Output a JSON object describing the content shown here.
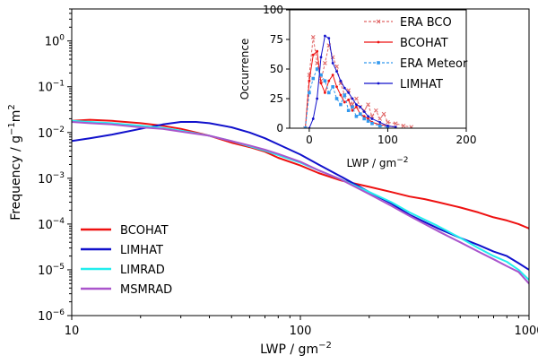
{
  "chart_data": [
    {
      "type": "line",
      "xscale": "log",
      "yscale": "log",
      "xlabel": "LWP / gm",
      "xlabel_exp": "−2",
      "ylabel": "Frequency / g",
      "ylabel_exp1": "−1",
      "ylabel_mid": "m",
      "ylabel_exp2": "2",
      "xlim": [
        10,
        1000
      ],
      "ylim": [
        1e-06,
        5
      ],
      "xticks": [
        {
          "value": 10,
          "label": "10"
        },
        {
          "value": 100,
          "label": "100"
        },
        {
          "value": 1000,
          "label": "1000"
        }
      ],
      "yticks": [
        {
          "value": 1e-06,
          "base": "10",
          "exp": "−6"
        },
        {
          "value": 1e-05,
          "base": "10",
          "exp": "−5"
        },
        {
          "value": 0.0001,
          "base": "10",
          "exp": "−4"
        },
        {
          "value": 0.001,
          "base": "10",
          "exp": "−3"
        },
        {
          "value": 0.01,
          "base": "10",
          "exp": "−2"
        },
        {
          "value": 0.1,
          "base": "10",
          "exp": "−1"
        },
        {
          "value": 1,
          "base": "10",
          "exp": "0"
        }
      ],
      "legend_position": "lower-left",
      "series": [
        {
          "name": "BCOHAT",
          "color": "#ee1111",
          "x": [
            10,
            12,
            15,
            20,
            25,
            30,
            40,
            50,
            60,
            70,
            80,
            100,
            120,
            150,
            200,
            250,
            300,
            350,
            400,
            500,
            600,
            700,
            800,
            900,
            1000
          ],
          "y": [
            0.018,
            0.019,
            0.018,
            0.016,
            0.014,
            0.012,
            0.0085,
            0.006,
            0.0048,
            0.0038,
            0.0028,
            0.0019,
            0.0013,
            0.0009,
            0.00065,
            0.0005,
            0.0004,
            0.00035,
            0.0003,
            0.00023,
            0.00018,
            0.00014,
            0.00012,
            0.0001,
            8e-05
          ]
        },
        {
          "name": "LIMHAT",
          "color": "#1111cc",
          "x": [
            10,
            12,
            15,
            20,
            25,
            30,
            35,
            40,
            50,
            60,
            70,
            80,
            100,
            120,
            150,
            200,
            250,
            300,
            400,
            500,
            600,
            700,
            800,
            900,
            1000
          ],
          "y": [
            0.0065,
            0.0075,
            0.009,
            0.012,
            0.015,
            0.017,
            0.017,
            0.016,
            0.013,
            0.01,
            0.0075,
            0.0055,
            0.0033,
            0.002,
            0.0011,
            0.0005,
            0.00028,
            0.00016,
            8e-05,
            5e-05,
            3.5e-05,
            2.5e-05,
            2e-05,
            1.4e-05,
            1e-05
          ]
        },
        {
          "name": "LIMRAD",
          "color": "#22eeee",
          "x": [
            10,
            12,
            15,
            20,
            25,
            30,
            40,
            50,
            60,
            70,
            80,
            100,
            120,
            150,
            200,
            250,
            300,
            400,
            500,
            600,
            700,
            800,
            900,
            1000
          ],
          "y": [
            0.018,
            0.017,
            0.016,
            0.014,
            0.0125,
            0.011,
            0.0085,
            0.0065,
            0.005,
            0.004,
            0.0032,
            0.0022,
            0.0015,
            0.00095,
            0.0005,
            0.0003,
            0.00018,
            9e-05,
            5e-05,
            3e-05,
            2e-05,
            1.5e-05,
            1e-05,
            6e-06
          ]
        },
        {
          "name": "MSMRAD",
          "color": "#aa55cc",
          "x": [
            10,
            12,
            15,
            20,
            25,
            30,
            40,
            50,
            60,
            70,
            80,
            100,
            120,
            150,
            200,
            250,
            300,
            400,
            500,
            600,
            700,
            800,
            900,
            1000
          ],
          "y": [
            0.017,
            0.016,
            0.015,
            0.013,
            0.012,
            0.0105,
            0.0085,
            0.0065,
            0.0052,
            0.0042,
            0.0034,
            0.0023,
            0.0015,
            0.00095,
            0.00045,
            0.00025,
            0.00015,
            7e-05,
            4e-05,
            2.5e-05,
            1.7e-05,
            1.2e-05,
            9e-06,
            5e-06
          ]
        }
      ]
    },
    {
      "type": "line",
      "xlabel": "LWP / gm",
      "xlabel_exp": "−2",
      "ylabel": "Occurrence",
      "xlim": [
        -25,
        200
      ],
      "ylim": [
        0,
        100
      ],
      "xticks": [
        0,
        100,
        200
      ],
      "yticks": [
        0,
        25,
        50,
        75,
        100
      ],
      "legend_position": "right",
      "series": [
        {
          "name": "ERA BCO",
          "color": "#e06666",
          "style": "dashed",
          "marker": "x",
          "x": [
            -5,
            0,
            5,
            10,
            15,
            20,
            25,
            30,
            35,
            40,
            45,
            50,
            55,
            60,
            65,
            70,
            75,
            80,
            85,
            90,
            95,
            100,
            110,
            120,
            130
          ],
          "y": [
            0,
            45,
            77,
            55,
            40,
            55,
            70,
            60,
            52,
            38,
            28,
            32,
            20,
            25,
            18,
            15,
            20,
            10,
            15,
            8,
            12,
            5,
            4,
            2,
            1
          ]
        },
        {
          "name": "BCOHAT",
          "color": "#ee1111",
          "style": "solid",
          "marker": "dot",
          "x": [
            -5,
            0,
            5,
            10,
            15,
            20,
            25,
            30,
            35,
            40,
            45,
            50,
            55,
            60,
            65,
            70,
            75,
            80,
            90,
            100,
            110
          ],
          "y": [
            0,
            40,
            62,
            65,
            38,
            30,
            40,
            45,
            35,
            28,
            22,
            24,
            15,
            18,
            12,
            10,
            8,
            5,
            3,
            2,
            1
          ]
        },
        {
          "name": "ERA Meteor",
          "color": "#3399ee",
          "style": "dashed",
          "marker": "square",
          "x": [
            -5,
            0,
            5,
            10,
            15,
            20,
            25,
            30,
            35,
            40,
            45,
            50,
            55,
            60,
            65,
            70,
            75,
            80,
            90,
            100
          ],
          "y": [
            0,
            30,
            42,
            50,
            45,
            40,
            30,
            35,
            25,
            20,
            28,
            15,
            18,
            10,
            12,
            8,
            6,
            4,
            2,
            1
          ]
        },
        {
          "name": "LIMHAT",
          "color": "#1111cc",
          "style": "solid",
          "marker": "dot",
          "x": [
            0,
            5,
            10,
            15,
            20,
            25,
            30,
            35,
            40,
            45,
            50,
            55,
            60,
            65,
            70,
            75,
            80,
            90,
            100,
            110
          ],
          "y": [
            0,
            8,
            25,
            60,
            78,
            76,
            55,
            48,
            40,
            34,
            30,
            25,
            20,
            18,
            14,
            10,
            8,
            5,
            2,
            1
          ]
        }
      ]
    }
  ]
}
